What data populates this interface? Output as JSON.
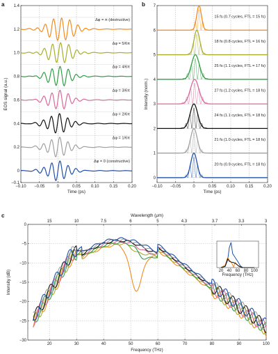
{
  "chart_data": [
    {
      "panel": "a",
      "type": "line",
      "xlabel": "Time (ps)",
      "ylabel": "EOS signal (a.u.)",
      "xlim": [
        -0.1,
        0.2
      ],
      "ylim": [
        -0.1,
        1.4
      ],
      "x_ticks": [
        "−0.10",
        "−0.05",
        "0",
        "0.05",
        "0.10",
        "0.15",
        "0.20"
      ],
      "y_ticks": [
        "−0.1",
        "0",
        "0.2",
        "0.4",
        "0.6",
        "0.8",
        "1.0",
        "1.2",
        "1.4"
      ],
      "grid": "dashed vertical",
      "series": [
        {
          "name": "Δφ = π (destructive)",
          "color": "#f28c1e",
          "offset": 1.2,
          "amplitude": 0.1,
          "center": 0.008,
          "width": 0.032,
          "period": 0.022,
          "phase": 1.0
        },
        {
          "name": "Δφ = 5/6π",
          "color": "#a8ad2a",
          "offset": 1.0,
          "amplitude": 0.09,
          "center": 0.005,
          "width": 0.03,
          "period": 0.022,
          "phase": 0.9
        },
        {
          "name": "Δφ = 4/6π",
          "color": "#2f9e44",
          "offset": 0.8,
          "amplitude": 0.085,
          "center": 0.003,
          "width": 0.028,
          "period": 0.022,
          "phase": 0.7
        },
        {
          "name": "Δφ = 3/6π",
          "color": "#d9689b",
          "offset": 0.6,
          "amplitude": 0.08,
          "center": 0.002,
          "width": 0.028,
          "period": 0.022,
          "phase": 0.5
        },
        {
          "name": "Δφ = 2/6π",
          "color": "#111111",
          "offset": 0.4,
          "amplitude": 0.08,
          "center": 0.0,
          "width": 0.028,
          "period": 0.022,
          "phase": 0.3
        },
        {
          "name": "Δφ = 1/6π",
          "color": "#a0a0a0",
          "offset": 0.2,
          "amplitude": 0.08,
          "center": 0.0,
          "width": 0.028,
          "period": 0.022,
          "phase": 0.15
        },
        {
          "name": "Δφ = 0 (constructive)",
          "color": "#1f4fa8",
          "offset": 0.0,
          "amplitude": 0.08,
          "center": 0.0,
          "width": 0.028,
          "period": 0.022,
          "phase": 0.0
        }
      ]
    },
    {
      "panel": "b",
      "type": "line",
      "xlabel": "Time (ps)",
      "ylabel": "Intensity (norm.)",
      "xlim": [
        -0.1,
        0.2
      ],
      "ylim": [
        -0.2,
        7
      ],
      "x_ticks": [
        "−0.10",
        "−0.05",
        "0",
        "0.05",
        "0.10",
        "0.15",
        "0.20"
      ],
      "y_ticks": [
        "0",
        "1",
        "2",
        "3",
        "4",
        "5",
        "6",
        "7"
      ],
      "grid": "dashed vertical",
      "series": [
        {
          "label": "15 fs (0.7 cycles, FTL = 15 fs)",
          "color": "#f28c1e",
          "offset": 6,
          "center": 0.014,
          "fwhm": 0.015
        },
        {
          "label": "18 fs (0.8 cycles, FTL = 16 fs)",
          "color": "#a8ad2a",
          "offset": 5,
          "center": 0.008,
          "fwhm": 0.018
        },
        {
          "label": "25 fs (1.1 cycles, FTL = 17 fs)",
          "color": "#2f9e44",
          "offset": 4,
          "center": 0.004,
          "fwhm": 0.025
        },
        {
          "label": "27 fs (1.2 cycles, FTL = 18 fs)",
          "color": "#d9689b",
          "offset": 3,
          "center": 0.002,
          "fwhm": 0.027
        },
        {
          "label": "24 fs (1.1 cycles, FTL = 18 fs)",
          "color": "#111111",
          "offset": 2,
          "center": 0.0,
          "fwhm": 0.024
        },
        {
          "label": "21 fs (1.0 cycles, FTL = 18 fs)",
          "color": "#a0a0a0",
          "offset": 1,
          "center": 0.0,
          "fwhm": 0.021
        },
        {
          "label": "20 fs (0.9 cycles, FTL = 18 fs)",
          "color": "#1f4fa8",
          "offset": 0,
          "center": 0.0,
          "fwhm": 0.02
        }
      ]
    },
    {
      "panel": "c",
      "type": "line",
      "xlabel": "Frequency (THz)",
      "ylabel": "Intensity (dB)",
      "top_axis_label": "Wavelength (μm)",
      "xlim": [
        12,
        100
      ],
      "ylim": [
        -30,
        0
      ],
      "x_ticks": [
        "20",
        "30",
        "40",
        "50",
        "60",
        "70",
        "80",
        "90",
        "100"
      ],
      "y_ticks": [
        "−30",
        "−25",
        "−20",
        "−15",
        "−10",
        "−5",
        "0"
      ],
      "top_ticks": [
        "15",
        "10",
        "7.5",
        "6",
        "5",
        "4.3",
        "3.7",
        "3.3",
        "3"
      ],
      "grid": "dashed",
      "series": [
        {
          "color": "#f28c1e",
          "dip_center": 52,
          "dip_depth": 11,
          "peak": 32
        },
        {
          "color": "#a8ad2a",
          "dip_center": 53,
          "dip_depth": 1.5,
          "peak": 33
        },
        {
          "color": "#2f9e44",
          "dip_center": 55,
          "dip_depth": 2.5,
          "peak": 34
        },
        {
          "color": "#d9689b",
          "dip_center": 55,
          "dip_depth": 0.8,
          "peak": 35
        },
        {
          "color": "#111111",
          "dip_center": 55,
          "dip_depth": 0.3,
          "peak": 38
        },
        {
          "color": "#a0a0a0",
          "dip_center": 55,
          "dip_depth": 0.2,
          "peak": 40
        },
        {
          "color": "#1f4fa8",
          "dip_center": 55,
          "dip_depth": 0.0,
          "peak": 44
        }
      ],
      "inset": {
        "xlabel": "Frequency (THz)",
        "x_ticks": [
          "20",
          "40",
          "60",
          "80",
          "100"
        ],
        "series": [
          {
            "color": "#1f4fa8",
            "points": [
              [
                20,
                0
              ],
              [
                30,
                0.05
              ],
              [
                36,
                0.3
              ],
              [
                40,
                0.8
              ],
              [
                44,
                1.0
              ],
              [
                48,
                0.55
              ],
              [
                52,
                0.45
              ],
              [
                56,
                0.35
              ],
              [
                60,
                0.25
              ],
              [
                66,
                0.08
              ],
              [
                72,
                0.0
              ],
              [
                100,
                0
              ]
            ]
          },
          {
            "color": "#f28c1e",
            "points": [
              [
                20,
                0
              ],
              [
                30,
                0.1
              ],
              [
                36,
                0.4
              ],
              [
                40,
                0.3
              ],
              [
                46,
                0.18
              ],
              [
                50,
                0.02
              ],
              [
                54,
                0.2
              ],
              [
                58,
                0.12
              ],
              [
                64,
                0.03
              ],
              [
                70,
                0
              ],
              [
                100,
                0
              ]
            ]
          },
          {
            "color": "#111111",
            "points": [
              [
                20,
                0
              ],
              [
                30,
                0.05
              ],
              [
                36,
                0.35
              ],
              [
                40,
                0.25
              ],
              [
                44,
                0.22
              ],
              [
                50,
                0.2
              ],
              [
                56,
                0.15
              ],
              [
                62,
                0.07
              ],
              [
                70,
                0.0
              ],
              [
                100,
                0
              ]
            ]
          }
        ]
      }
    }
  ],
  "labels": {
    "panel_a": "a",
    "panel_b": "b",
    "panel_c": "c"
  }
}
